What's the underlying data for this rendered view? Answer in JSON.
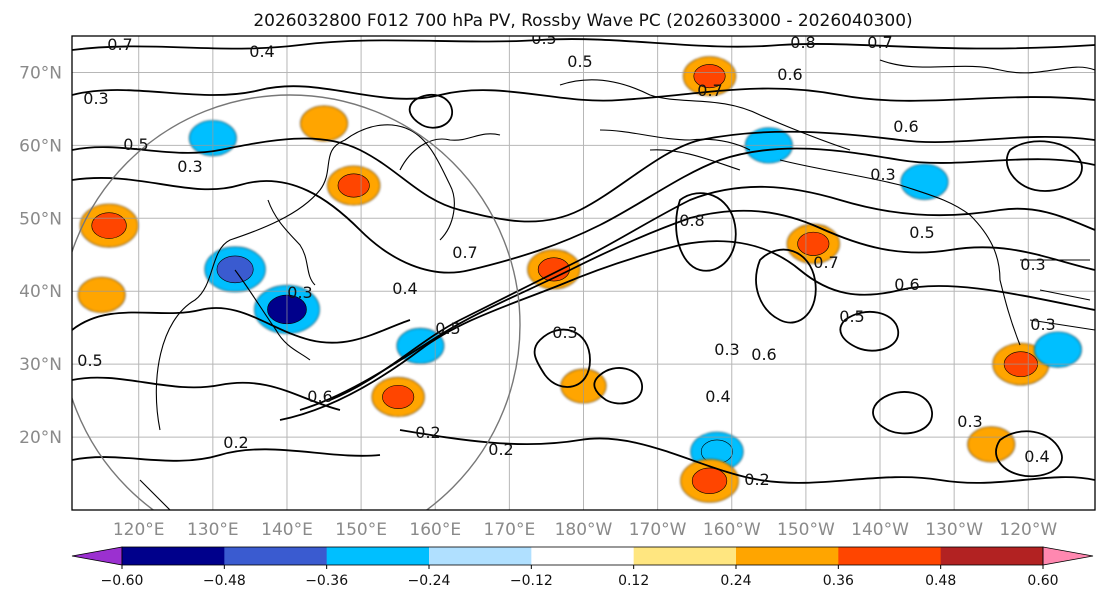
{
  "chart_data": {
    "type": "heatmap",
    "title": "2026032800 F012 700 hPa PV, Rossby Wave PC (2026033000 - 2026040300)",
    "latitude_ticks": [
      "70°N",
      "60°N",
      "50°N",
      "40°N",
      "30°N",
      "20°N"
    ],
    "latitude_values": [
      70,
      60,
      50,
      40,
      30,
      20
    ],
    "longitude_ticks": [
      "120°E",
      "130°E",
      "140°E",
      "150°E",
      "160°E",
      "170°E",
      "180°W",
      "170°W",
      "160°W",
      "150°W",
      "140°W",
      "130°W",
      "120°W"
    ],
    "longitude_values": [
      120,
      130,
      140,
      150,
      160,
      170,
      180,
      190,
      200,
      210,
      220,
      230,
      240
    ],
    "lat_range": [
      10,
      75
    ],
    "lon_range": [
      111,
      249
    ],
    "colorbar": {
      "levels": [
        -0.72,
        -0.6,
        -0.48,
        -0.36,
        -0.24,
        -0.12,
        0.12,
        0.24,
        0.36,
        0.48,
        0.6,
        0.72
      ],
      "tick_labels": [
        "−0.60",
        "−0.48",
        "−0.36",
        "−0.24",
        "−0.12",
        "0.12",
        "0.24",
        "0.36",
        "0.48",
        "0.60"
      ],
      "tick_values": [
        -0.6,
        -0.48,
        -0.36,
        -0.24,
        -0.12,
        0.12,
        0.24,
        0.36,
        0.48,
        0.6
      ],
      "colors": [
        "#9b30d0",
        "#00008b",
        "#3a5bd0",
        "#00bfff",
        "#b0e0ff",
        "#ffffff",
        "#ffe680",
        "#ffa500",
        "#ff4500",
        "#b22222",
        "#ff88b0"
      ],
      "extend": "both"
    },
    "shaded_features": [
      {
        "lon": 116,
        "lat": 49,
        "value": 0.42
      },
      {
        "lon": 115,
        "lat": 39.5,
        "value": 0.3
      },
      {
        "lon": 133,
        "lat": 43,
        "value": -0.45
      },
      {
        "lon": 140,
        "lat": 37.5,
        "value": -0.5
      },
      {
        "lon": 130,
        "lat": 61,
        "value": -0.3
      },
      {
        "lon": 145,
        "lat": 63,
        "value": 0.3
      },
      {
        "lon": 149,
        "lat": 54.5,
        "value": 0.36
      },
      {
        "lon": 155,
        "lat": 25.5,
        "value": 0.36
      },
      {
        "lon": 158,
        "lat": 32.5,
        "value": -0.3
      },
      {
        "lon": 176,
        "lat": 43,
        "value": 0.36
      },
      {
        "lon": 197,
        "lat": 69.5,
        "value": 0.36
      },
      {
        "lon": 205,
        "lat": 60,
        "value": -0.3
      },
      {
        "lon": 211,
        "lat": 46.5,
        "value": 0.36
      },
      {
        "lon": 198,
        "lat": 18,
        "value": -0.36
      },
      {
        "lon": 197,
        "lat": 14,
        "value": 0.42
      },
      {
        "lon": 226,
        "lat": 55,
        "value": -0.3
      },
      {
        "lon": 239,
        "lat": 30,
        "value": 0.4
      },
      {
        "lon": 244,
        "lat": 32,
        "value": -0.3
      },
      {
        "lon": 235,
        "lat": 19,
        "value": 0.3
      },
      {
        "lon": 180,
        "lat": 27,
        "value": 0.28
      }
    ],
    "contour_labels": [
      "0.7",
      "0.4",
      "0.5",
      "0.8",
      "0.7",
      "0.7",
      "0.6",
      "0.5",
      "0.3",
      "0.5",
      "0.2",
      "0.3",
      "0.2",
      "0.4",
      "0.6",
      "0.5",
      "0.3",
      "0.7",
      "0.8",
      "0.3",
      "0.6",
      "0.5",
      "0.5",
      "0.7",
      "0.6",
      "0.3",
      "0.4",
      "0.3",
      "0.5",
      "0.2",
      "0.2",
      "0.3",
      "0.3",
      "0.4",
      "0.3",
      "0.6"
    ]
  }
}
